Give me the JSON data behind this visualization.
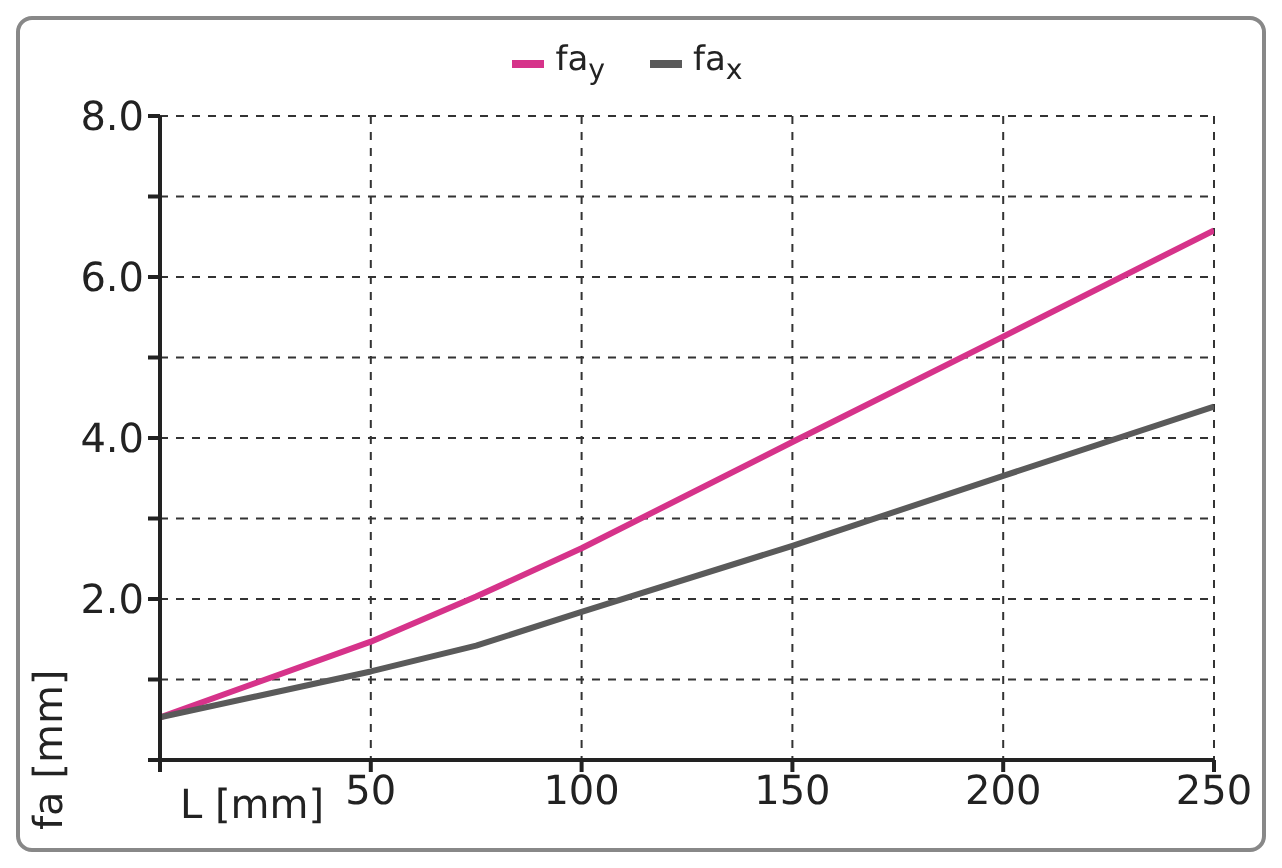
{
  "chart_data": {
    "type": "line",
    "xlabel": "L [mm]",
    "ylabel": "fa [mm]",
    "x": [
      0,
      50,
      75,
      100,
      150,
      200,
      250
    ],
    "series": [
      {
        "name": "fa$_{y}$",
        "color": "#d6338a",
        "values": [
          0.53,
          1.47,
          2.03,
          2.63,
          3.95,
          5.26,
          6.58
        ]
      },
      {
        "name": "fa$_{x}$",
        "color": "#5a5a5a",
        "values": [
          0.53,
          1.1,
          1.42,
          1.84,
          2.66,
          3.53,
          4.39
        ]
      }
    ],
    "xlim": [
      0,
      250
    ],
    "xticks": [
      {
        "value": 0,
        "label": null
      },
      50,
      100,
      150,
      200,
      250
    ],
    "ylim": [
      0,
      8
    ],
    "yticks": [
      {
        "value": 0,
        "label": null
      },
      {
        "value": 1,
        "label": null
      },
      {
        "value": 2,
        "label": "2.0"
      },
      {
        "value": 3,
        "label": null
      },
      {
        "value": 4,
        "label": "4.0"
      },
      {
        "value": 5,
        "label": null
      },
      {
        "value": 6,
        "label": "6.0"
      },
      {
        "value": 7,
        "label": null
      },
      {
        "value": 8,
        "label": "8.0"
      }
    ],
    "grid": true,
    "legend": "top",
    "marker": "none",
    "line_style": "solid"
  }
}
